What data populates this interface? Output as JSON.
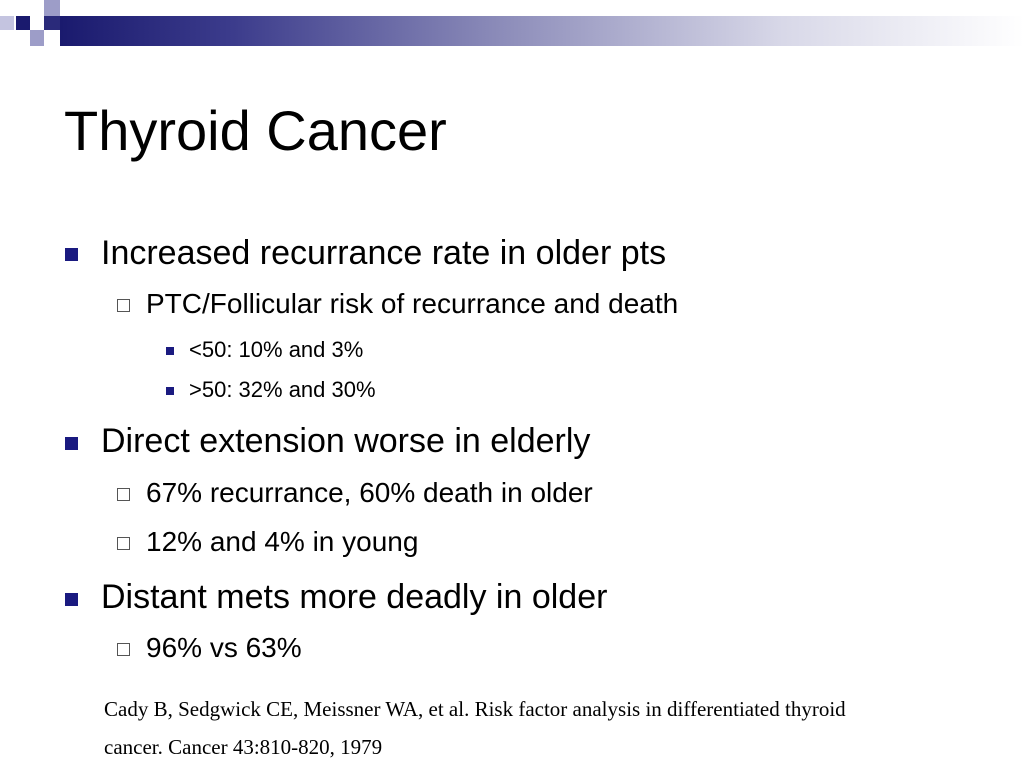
{
  "slide": {
    "title": "Thyroid Cancer",
    "bullets": [
      {
        "text": "Increased recurrance rate in older pts",
        "sub": [
          {
            "text": "PTC/Follicular risk of recurrance and death",
            "sub": [
              {
                "text": "<50:  10% and 3%"
              },
              {
                "text": ">50:  32% and 30%"
              }
            ]
          }
        ]
      },
      {
        "text": "Direct extension worse in elderly",
        "sub": [
          {
            "text": "67% recurrance, 60% death in older"
          },
          {
            "text": "12% and 4% in young"
          }
        ]
      },
      {
        "text": "Distant mets more deadly in older",
        "sub": [
          {
            "text": "96% vs 63%"
          }
        ]
      }
    ],
    "citation_line1": "Cady B, Sedgwick CE, Meissner WA, et al. Risk factor analysis in differentiated thyroid",
    "citation_line2": "cancer. Cancer 43:810-820, 1979"
  },
  "theme": {
    "accent": "#1a1a80",
    "band_start": "#1a1a6e",
    "square_light": "#9d9dc8"
  }
}
